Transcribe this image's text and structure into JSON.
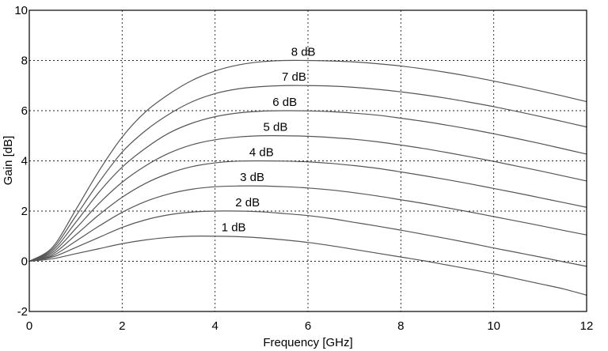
{
  "chart_data": {
    "type": "line",
    "title": "",
    "xlabel": "Frequency [GHz]",
    "ylabel": "Gain [dB]",
    "xlim": [
      0,
      12
    ],
    "ylim": [
      -2,
      10
    ],
    "grid": true,
    "x_ticks": [
      "0",
      "2",
      "4",
      "6",
      "8",
      "10",
      "12"
    ],
    "y_ticks": [
      "-2",
      "0",
      "2",
      "4",
      "6",
      "8",
      "10"
    ],
    "line_color": "#555555",
    "series": [
      {
        "name": "1 dB",
        "x": [
          0,
          0.5,
          1,
          1.5,
          2,
          2.5,
          3,
          3.5,
          4,
          4.5,
          5,
          5.5,
          6,
          6.5,
          7,
          7.5,
          8,
          8.5,
          9,
          9.5,
          10,
          10.5,
          11,
          11.5,
          12
        ],
        "values": [
          0,
          0.1,
          0.3,
          0.5,
          0.7,
          0.85,
          0.95,
          1.0,
          1.0,
          0.98,
          0.93,
          0.85,
          0.75,
          0.62,
          0.47,
          0.32,
          0.17,
          0.02,
          -0.15,
          -0.32,
          -0.5,
          -0.7,
          -0.9,
          -1.1,
          -1.35
        ],
        "label_x": 4.4,
        "label_y": 1.1
      },
      {
        "name": "2 dB",
        "x": [
          0,
          0.5,
          1,
          1.5,
          2,
          2.5,
          3,
          3.5,
          4,
          4.5,
          5,
          5.5,
          6,
          6.5,
          7,
          7.5,
          8,
          8.5,
          9,
          9.5,
          10,
          10.5,
          11,
          11.5,
          12
        ],
        "values": [
          0,
          0.17,
          0.55,
          0.95,
          1.35,
          1.65,
          1.85,
          1.96,
          2.0,
          2.0,
          1.97,
          1.9,
          1.82,
          1.7,
          1.55,
          1.4,
          1.24,
          1.07,
          0.9,
          0.72,
          0.53,
          0.35,
          0.17,
          -0.02,
          -0.2
        ],
        "label_x": 4.7,
        "label_y": 2.1
      },
      {
        "name": "3 dB",
        "x": [
          0,
          0.5,
          1,
          1.5,
          2,
          2.5,
          3,
          3.5,
          4,
          4.5,
          5,
          5.5,
          6,
          6.5,
          7,
          7.5,
          8,
          8.5,
          9,
          9.5,
          10,
          10.5,
          11,
          11.5,
          12
        ],
        "values": [
          0,
          0.22,
          0.8,
          1.4,
          1.95,
          2.38,
          2.68,
          2.87,
          2.97,
          3.0,
          3.0,
          2.97,
          2.92,
          2.84,
          2.73,
          2.6,
          2.45,
          2.3,
          2.13,
          1.96,
          1.78,
          1.6,
          1.42,
          1.23,
          1.05
        ],
        "label_x": 4.8,
        "label_y": 3.1
      },
      {
        "name": "4 dB",
        "x": [
          0,
          0.5,
          1,
          1.5,
          2,
          2.5,
          3,
          3.5,
          4,
          4.5,
          5,
          5.5,
          6,
          6.5,
          7,
          7.5,
          8,
          8.5,
          9,
          9.5,
          10,
          10.5,
          11,
          11.5,
          12
        ],
        "values": [
          0,
          0.28,
          1.05,
          1.85,
          2.55,
          3.1,
          3.5,
          3.77,
          3.92,
          3.99,
          4.0,
          3.99,
          3.96,
          3.9,
          3.81,
          3.7,
          3.56,
          3.41,
          3.25,
          3.08,
          2.9,
          2.72,
          2.53,
          2.34,
          2.15
        ],
        "label_x": 5.0,
        "label_y": 4.1
      },
      {
        "name": "5 dB",
        "x": [
          0,
          0.5,
          1,
          1.5,
          2,
          2.5,
          3,
          3.5,
          4,
          4.5,
          5,
          5.5,
          6,
          6.5,
          7,
          7.5,
          8,
          8.5,
          9,
          9.5,
          10,
          10.5,
          11,
          11.5,
          12
        ],
        "values": [
          0,
          0.35,
          1.3,
          2.3,
          3.15,
          3.8,
          4.3,
          4.64,
          4.84,
          4.95,
          5.0,
          5.0,
          4.98,
          4.93,
          4.86,
          4.76,
          4.63,
          4.49,
          4.33,
          4.16,
          3.98,
          3.79,
          3.6,
          3.4,
          3.2
        ],
        "label_x": 5.3,
        "label_y": 5.1
      },
      {
        "name": "6 dB",
        "x": [
          0,
          0.5,
          1,
          1.5,
          2,
          2.5,
          3,
          3.5,
          4,
          4.5,
          5,
          5.5,
          6,
          6.5,
          7,
          7.5,
          8,
          8.5,
          9,
          9.5,
          10,
          10.5,
          11,
          11.5,
          12
        ],
        "values": [
          0,
          0.42,
          1.55,
          2.75,
          3.75,
          4.5,
          5.1,
          5.5,
          5.76,
          5.91,
          5.98,
          6.0,
          5.99,
          5.96,
          5.9,
          5.82,
          5.7,
          5.57,
          5.42,
          5.26,
          5.08,
          4.89,
          4.69,
          4.48,
          4.27
        ],
        "label_x": 5.5,
        "label_y": 6.1
      },
      {
        "name": "7 dB",
        "x": [
          0,
          0.5,
          1,
          1.5,
          2,
          2.5,
          3,
          3.5,
          4,
          4.5,
          5,
          5.5,
          6,
          6.5,
          7,
          7.5,
          8,
          8.5,
          9,
          9.5,
          10,
          10.5,
          11,
          11.5,
          12
        ],
        "values": [
          0,
          0.49,
          1.8,
          3.15,
          4.35,
          5.2,
          5.85,
          6.35,
          6.68,
          6.87,
          6.96,
          7.0,
          7.0,
          6.98,
          6.93,
          6.85,
          6.75,
          6.63,
          6.49,
          6.33,
          6.16,
          5.97,
          5.77,
          5.56,
          5.35
        ],
        "label_x": 5.7,
        "label_y": 7.1
      },
      {
        "name": "8 dB",
        "x": [
          0,
          0.5,
          1,
          1.5,
          2,
          2.5,
          3,
          3.5,
          4,
          4.5,
          5,
          5.5,
          6,
          6.5,
          7,
          7.5,
          8,
          8.5,
          9,
          9.5,
          10,
          10.5,
          11,
          11.5,
          12
        ],
        "values": [
          0,
          0.56,
          2.05,
          3.6,
          4.95,
          5.95,
          6.65,
          7.2,
          7.58,
          7.82,
          7.95,
          8.0,
          8.0,
          7.98,
          7.94,
          7.87,
          7.78,
          7.66,
          7.52,
          7.36,
          7.18,
          6.99,
          6.79,
          6.58,
          6.36
        ],
        "label_x": 5.9,
        "label_y": 8.1
      }
    ]
  }
}
